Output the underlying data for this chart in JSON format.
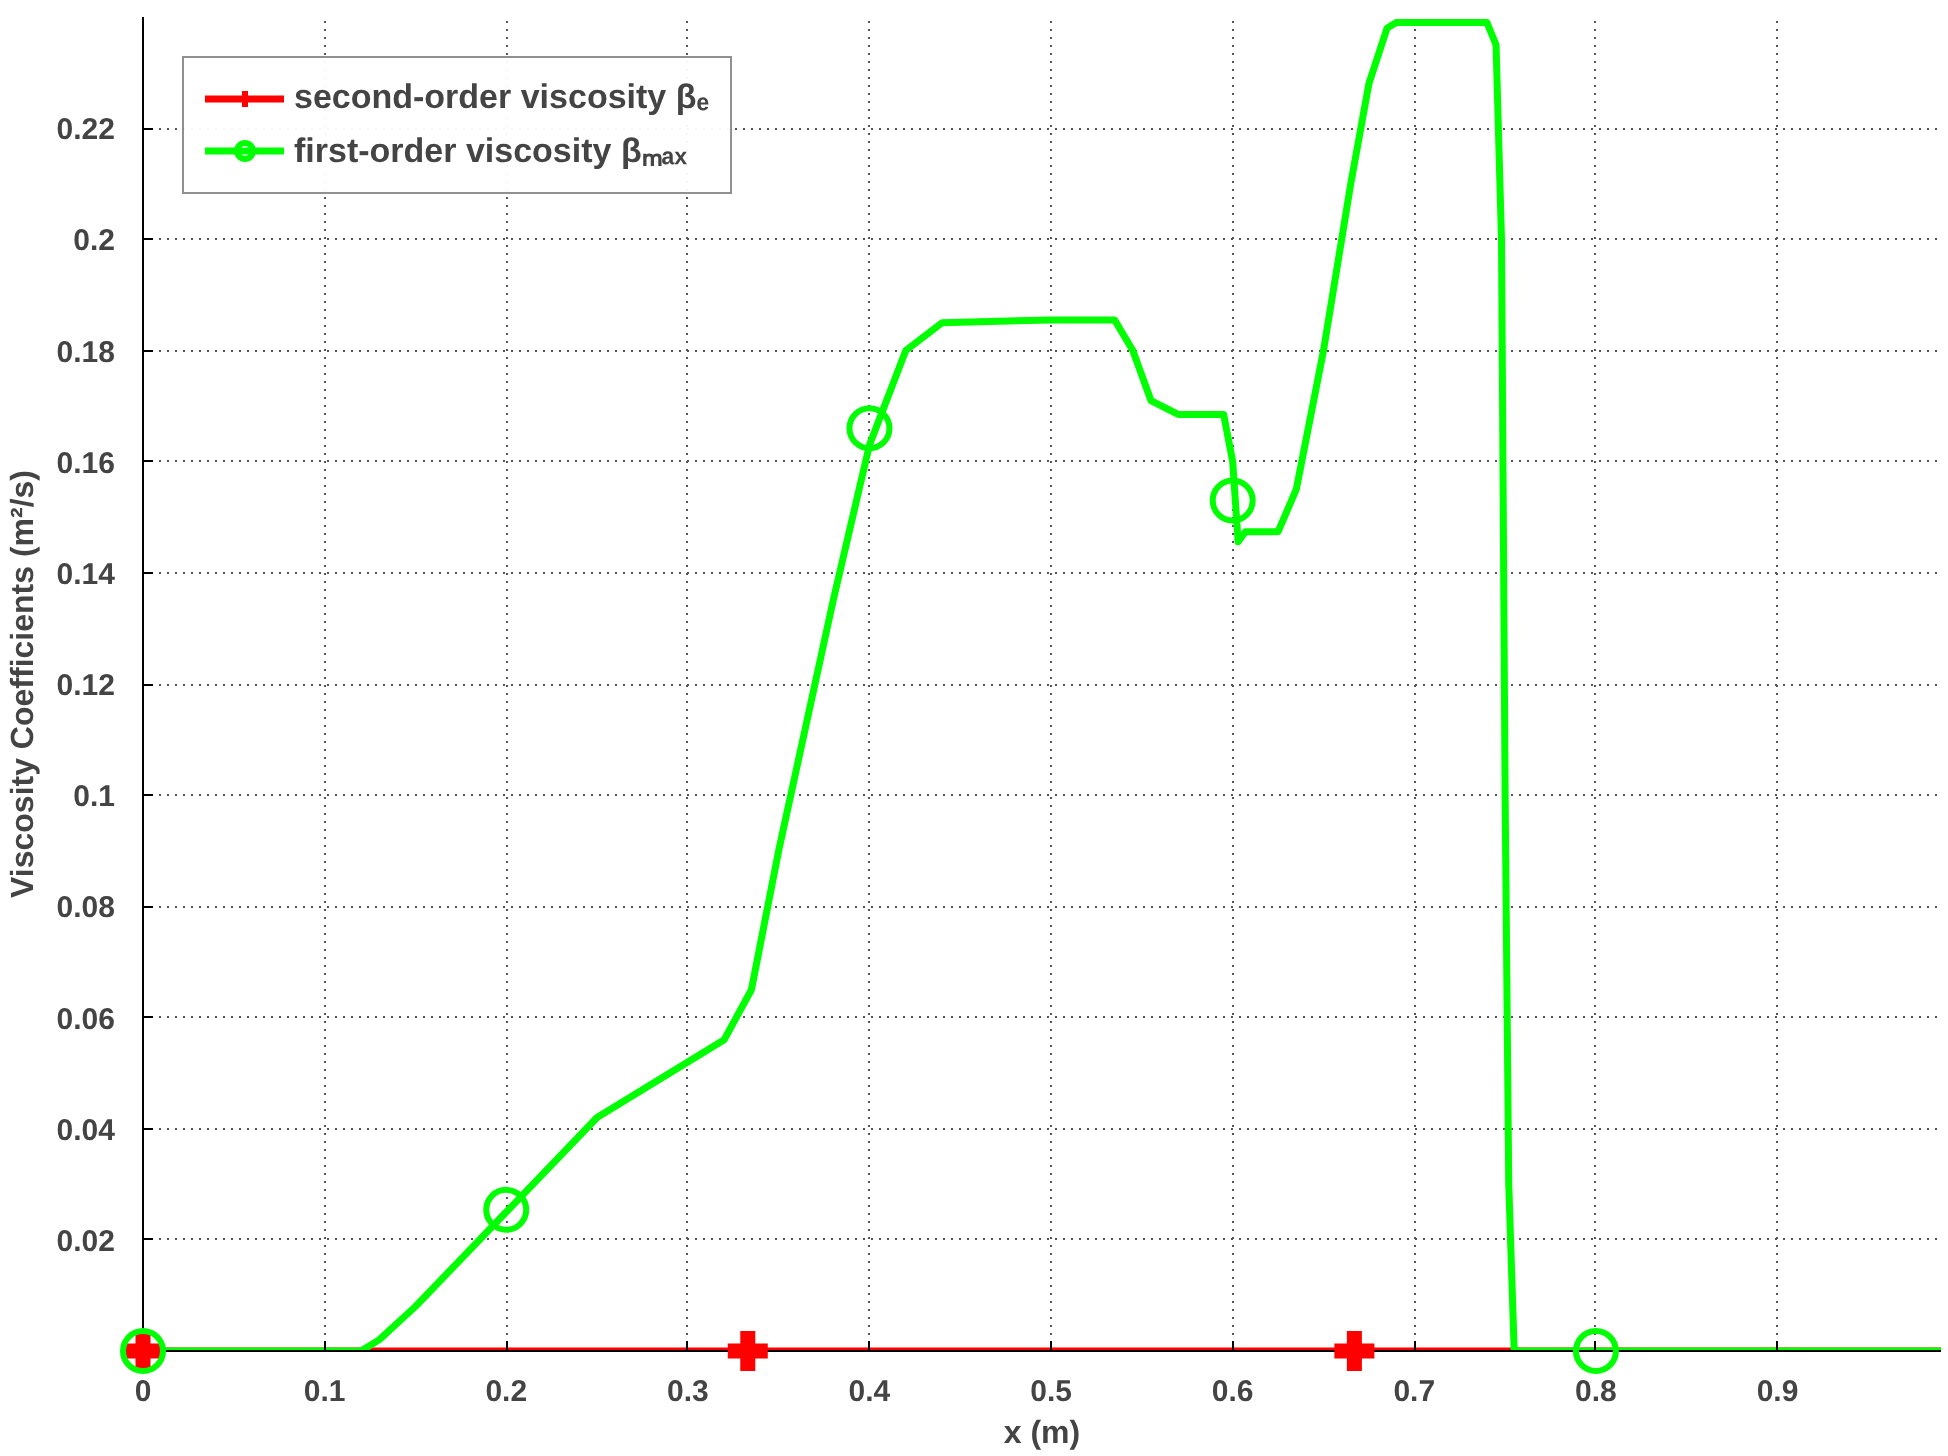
{
  "chart_data": {
    "type": "line",
    "xlabel": "x (m)",
    "ylabel": "Viscosity Coefficients (m²/s)",
    "xlim": [
      0,
      0.99
    ],
    "ylim": [
      0,
      0.24
    ],
    "xticks": [
      0,
      0.1,
      0.2,
      0.3,
      0.4,
      0.5,
      0.6,
      0.7,
      0.8,
      0.9
    ],
    "yticks": [
      0.02,
      0.04,
      0.06,
      0.08,
      0.1,
      0.12,
      0.14,
      0.16,
      0.18,
      0.2,
      0.22
    ],
    "grid": true,
    "legend": "top left",
    "line_style": "solid",
    "series": [
      {
        "name": "second-order viscosity βₑ",
        "color": "#ff0000",
        "marker": "none",
        "x": [
          0,
          0.99
        ],
        "values": [
          0,
          0
        ]
      },
      {
        "type": "scatter",
        "color": "#ff0000",
        "marker": "cross",
        "x": [
          0,
          0.333,
          0.667
        ],
        "values": [
          0,
          0,
          0
        ]
      },
      {
        "name": "first-order viscosity βₘₐₓ",
        "color": "#00ff00",
        "marker": "none",
        "x": [
          0,
          0.12,
          0.13,
          0.15,
          0.2,
          0.25,
          0.3,
          0.32,
          0.335,
          0.35,
          0.38,
          0.4,
          0.42,
          0.44,
          0.5,
          0.535,
          0.545,
          0.555,
          0.57,
          0.595,
          0.6,
          0.603,
          0.607,
          0.625,
          0.635,
          0.65,
          0.665,
          0.675,
          0.685,
          0.69,
          0.74,
          0.745,
          0.748,
          0.75,
          0.752,
          0.755,
          0.99
        ],
        "values": [
          0,
          0,
          0.002,
          0.008,
          0.025,
          0.042,
          0.052,
          0.056,
          0.065,
          0.09,
          0.135,
          0.163,
          0.18,
          0.185,
          0.1855,
          0.1855,
          0.18,
          0.171,
          0.1685,
          0.1685,
          0.16,
          0.1456,
          0.1474,
          0.1474,
          0.155,
          0.18,
          0.21,
          0.228,
          0.238,
          0.239,
          0.239,
          0.235,
          0.2,
          0.1,
          0.03,
          0,
          0
        ]
      },
      {
        "type": "scatter",
        "color": "#00ff00",
        "marker": "circle",
        "x": [
          0,
          0.2,
          0.4,
          0.6,
          0.8
        ],
        "values": [
          0,
          0.0254,
          0.166,
          0.153,
          0
        ]
      }
    ]
  }
}
